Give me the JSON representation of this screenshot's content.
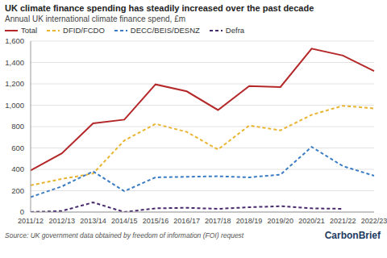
{
  "chart_data": {
    "type": "line",
    "title": "UK climate finance spending has steadily increased over the past decade",
    "subtitle": "Annual UK international climate finance spend, £m",
    "source": "Source: UK government data obtained by freedom of information (FOI) request",
    "logo": "CarbonBrief",
    "categories": [
      "2011/12",
      "2012/13",
      "2013/14",
      "2014/15",
      "2015/16",
      "2016/17",
      "2017/18",
      "2018/19",
      "2019/20",
      "2020/21",
      "2021/22",
      "2022/23"
    ],
    "series": [
      {
        "name": "Total",
        "color": "#b5282a",
        "line_style": "solid",
        "values": [
          390,
          550,
          830,
          865,
          1195,
          1130,
          955,
          1180,
          1170,
          1530,
          1465,
          1320
        ]
      },
      {
        "name": "DFID/FCDO",
        "color": "#e9b530",
        "line_style": "dashed",
        "values": [
          250,
          310,
          360,
          670,
          825,
          750,
          585,
          810,
          765,
          910,
          995,
          970
        ]
      },
      {
        "name": "DECC/BEIS/DESNZ",
        "color": "#3a7dc4",
        "line_style": "dashed",
        "values": [
          140,
          240,
          380,
          195,
          325,
          330,
          335,
          325,
          350,
          610,
          430,
          340
        ]
      },
      {
        "name": "Defra",
        "color": "#4a2a6e",
        "line_style": "dashed",
        "values": [
          0,
          10,
          90,
          0,
          35,
          40,
          30,
          45,
          55,
          35,
          30,
          null
        ]
      }
    ],
    "ylim": [
      0,
      1600
    ],
    "yticks": [
      0,
      200,
      400,
      600,
      800,
      {
        "value": 1000,
        "label": "1,000"
      },
      {
        "value": 1200,
        "label": "1,200"
      },
      {
        "value": 1400,
        "label": "1,400"
      },
      {
        "value": 1600,
        "label": "1,600"
      }
    ],
    "grid": true
  }
}
